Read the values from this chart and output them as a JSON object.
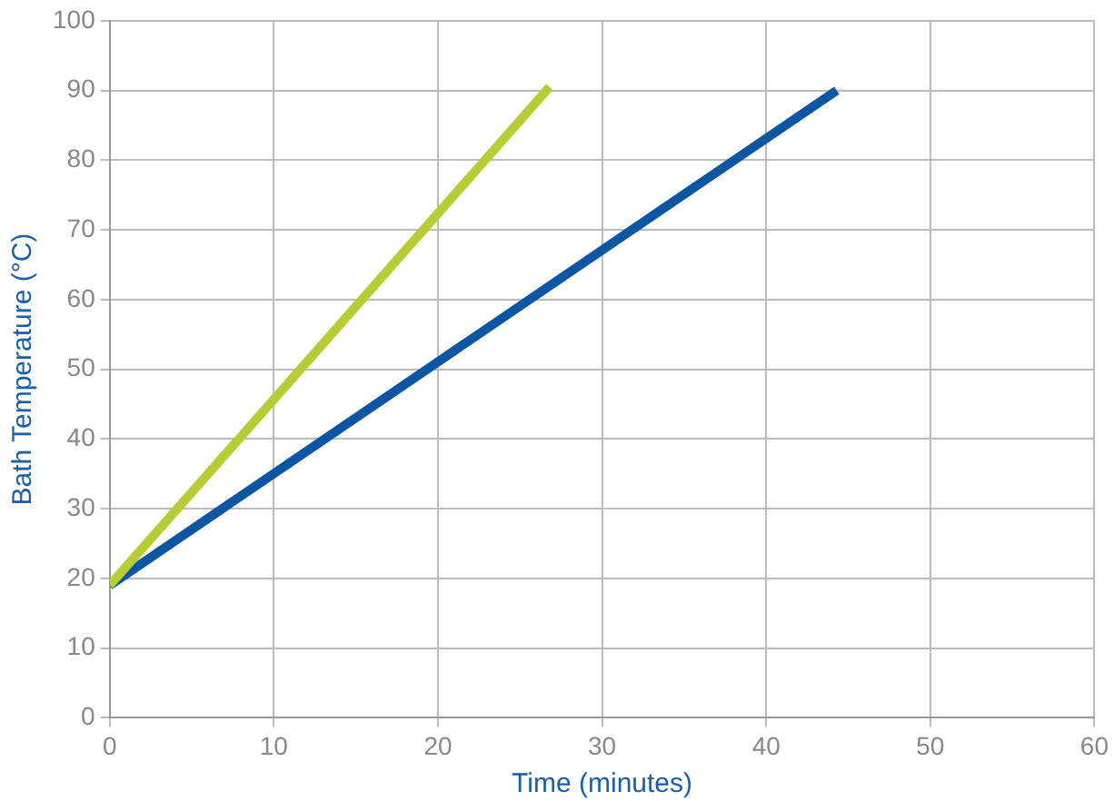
{
  "chart_data": {
    "type": "line",
    "xlabel": "Time (minutes)",
    "ylabel": "Bath Temperature (°C)",
    "series": [
      {
        "color": "#b8cc35",
        "x": [
          0,
          26.8
        ],
        "values": [
          19,
          90.5
        ]
      },
      {
        "color": "#0a56a4",
        "x": [
          0,
          44.3
        ],
        "values": [
          19,
          90
        ]
      }
    ],
    "xlim": [
      0,
      60
    ],
    "xticks": [
      0,
      10,
      20,
      30,
      40,
      50,
      60
    ],
    "ylim": [
      0,
      100
    ],
    "yticks": [
      0,
      10,
      20,
      30,
      40,
      50,
      60,
      70,
      80,
      90,
      100
    ],
    "grid": true,
    "legend": false,
    "marker": "none",
    "line_style": "solid"
  }
}
